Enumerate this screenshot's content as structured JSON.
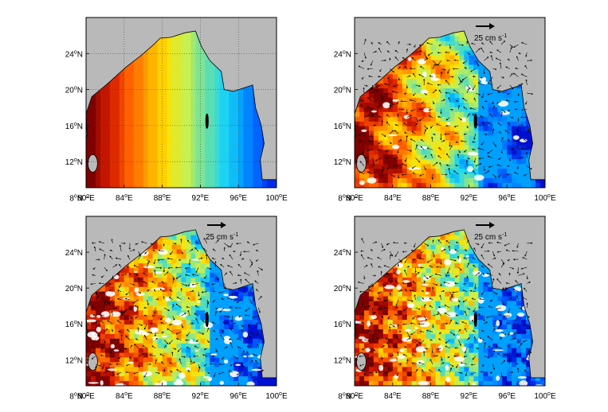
{
  "figure": {
    "panels": [
      {
        "id": "a",
        "field": "initial",
        "show_vectors": false
      },
      {
        "id": "b",
        "field": "day1",
        "show_vectors": true,
        "scale_label": "25 cm s",
        "scale_exp": "-1"
      },
      {
        "id": "c",
        "field": "day2",
        "show_vectors": true,
        "scale_label": "25 cm s",
        "scale_exp": "-1"
      },
      {
        "id": "d",
        "field": "day3",
        "show_vectors": true,
        "scale_label": "25 cm s",
        "scale_exp": "-1"
      }
    ],
    "x_ticks": [
      {
        "deg": "80",
        "hemi": "E"
      },
      {
        "deg": "84",
        "hemi": "E"
      },
      {
        "deg": "88",
        "hemi": "E"
      },
      {
        "deg": "92",
        "hemi": "E"
      },
      {
        "deg": "96",
        "hemi": "E"
      },
      {
        "deg": "100",
        "hemi": "E"
      }
    ],
    "y_ticks": [
      {
        "deg": "8",
        "hemi": "N"
      },
      {
        "deg": "12",
        "hemi": "N"
      },
      {
        "deg": "16",
        "hemi": "N"
      },
      {
        "deg": "20",
        "hemi": "N"
      },
      {
        "deg": "24",
        "hemi": "N"
      }
    ],
    "degree_symbol": "o",
    "colors": {
      "land": "#b9b9b9",
      "coast": "#000000",
      "vector": "#000000",
      "colormap": [
        "#7f0000",
        "#d11a00",
        "#ff5a00",
        "#ffa000",
        "#ffe000",
        "#c8f050",
        "#70e0a0",
        "#20d8f0",
        "#00a0ff",
        "#0050ff",
        "#0010d0"
      ]
    }
  }
}
